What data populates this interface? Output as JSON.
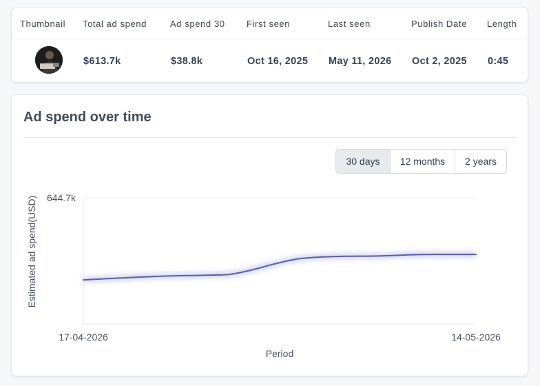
{
  "table": {
    "headers": [
      "Thumbnail",
      "Total ad spend",
      "Ad spend 30",
      "First seen",
      "Last seen",
      "Publish Date",
      "Length"
    ],
    "row": {
      "total_ad_spend": "$613.7k",
      "ad_spend_30": "$38.8k",
      "first_seen": "Oct 16, 2025",
      "last_seen": "May 11, 2026",
      "publish_date": "Oct 2, 2025",
      "length": "0:45"
    }
  },
  "chart_section": {
    "title": "Ad spend over time",
    "range_options": [
      "30 days",
      "12 months",
      "2 years"
    ],
    "selected_range": "30 days"
  },
  "chart_data": {
    "type": "line",
    "title": "",
    "xlabel": "Period",
    "ylabel": "Estimated ad spend(USD)",
    "y_tick_label": "644.7k",
    "x_tick_labels": [
      "17-04-2026",
      "14-05-2026"
    ],
    "ylim": [
      0,
      644700
    ],
    "grid": true,
    "series": [
      {
        "color": "#5a5ea6",
        "x": [
          "17-04-2026",
          "18-04-2026",
          "19-04-2026",
          "20-04-2026",
          "21-04-2026",
          "22-04-2026",
          "23-04-2026",
          "24-04-2026",
          "25-04-2026",
          "26-04-2026",
          "27-04-2026",
          "28-04-2026",
          "29-04-2026",
          "30-04-2026",
          "01-05-2026",
          "02-05-2026",
          "03-05-2026",
          "04-05-2026",
          "05-05-2026",
          "06-05-2026",
          "07-05-2026",
          "08-05-2026",
          "09-05-2026",
          "10-05-2026",
          "11-05-2026",
          "12-05-2026",
          "13-05-2026",
          "14-05-2026"
        ],
        "values": [
          225000,
          229000,
          233000,
          236500,
          240000,
          243000,
          245500,
          247000,
          248500,
          250000,
          253000,
          266000,
          284000,
          304000,
          322000,
          335000,
          340500,
          344000,
          346000,
          346500,
          347000,
          349000,
          352000,
          354500,
          355500,
          355500,
          355500,
          355500
        ]
      }
    ]
  },
  "colors": {
    "line": "#5a5ea6",
    "grid": "#e7e8ec",
    "active_button": "#e9eaee"
  }
}
